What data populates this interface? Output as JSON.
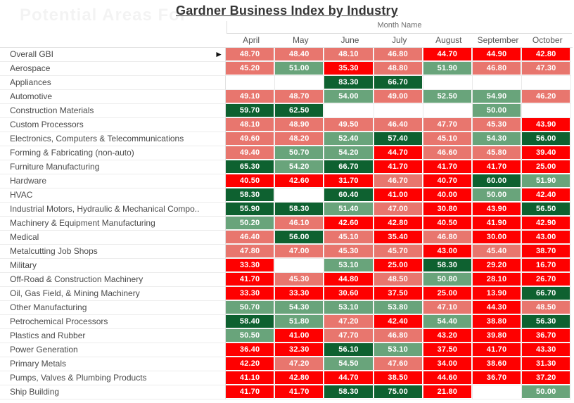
{
  "title": "Gardner Business Index by Industry",
  "watermark": {
    "text": "Potential Areas For"
  },
  "row_indicator": {
    "row_index": 0,
    "symbol": "►"
  },
  "chart_data": {
    "type": "heatmap",
    "title": "Gardner Business Index by Industry",
    "x_band_label": "Month Name",
    "columns": [
      "April",
      "May",
      "June",
      "July",
      "August",
      "September",
      "October"
    ],
    "rows": [
      {
        "label": "Overall GBI",
        "values": [
          48.7,
          48.4,
          48.1,
          46.8,
          44.7,
          44.9,
          42.8
        ]
      },
      {
        "label": "Aerospace",
        "values": [
          45.2,
          51.0,
          35.3,
          48.8,
          51.9,
          46.8,
          47.3
        ]
      },
      {
        "label": "Appliances",
        "values": [
          null,
          null,
          83.3,
          66.7,
          null,
          null,
          null
        ]
      },
      {
        "label": "Automotive",
        "values": [
          49.1,
          48.7,
          54.0,
          49.0,
          52.5,
          54.9,
          46.2
        ]
      },
      {
        "label": "Construction Materials",
        "values": [
          59.7,
          62.5,
          null,
          null,
          null,
          50.0,
          null
        ]
      },
      {
        "label": "Custom Processors",
        "values": [
          48.1,
          48.9,
          49.5,
          46.4,
          47.7,
          45.3,
          43.9
        ]
      },
      {
        "label": "Electronics, Computers & Telecommunications",
        "values": [
          49.6,
          48.2,
          52.4,
          57.4,
          45.1,
          54.3,
          56.0
        ]
      },
      {
        "label": "Forming & Fabricating (non-auto)",
        "values": [
          49.4,
          50.7,
          54.2,
          44.7,
          46.6,
          45.8,
          39.4
        ]
      },
      {
        "label": "Furniture Manufacturing",
        "values": [
          65.3,
          54.2,
          66.7,
          41.7,
          41.7,
          41.7,
          25.0
        ]
      },
      {
        "label": "Hardware",
        "values": [
          40.5,
          42.6,
          31.7,
          46.7,
          40.7,
          60.0,
          51.9
        ]
      },
      {
        "label": "HVAC",
        "values": [
          58.3,
          null,
          60.4,
          41.0,
          40.0,
          50.0,
          42.4
        ]
      },
      {
        "label": "Industrial Motors, Hydraulic & Mechanical Compo..",
        "values": [
          55.9,
          58.3,
          51.4,
          47.0,
          30.8,
          43.9,
          56.5
        ]
      },
      {
        "label": "Machinery & Equipment Manufacturing",
        "values": [
          50.2,
          46.1,
          42.6,
          42.8,
          40.5,
          41.9,
          42.9
        ]
      },
      {
        "label": "Medical",
        "values": [
          46.4,
          56.0,
          45.1,
          35.4,
          46.8,
          30.0,
          43.0
        ]
      },
      {
        "label": "Metalcutting Job Shops",
        "values": [
          47.8,
          47.0,
          45.3,
          45.7,
          43.0,
          45.4,
          38.7
        ]
      },
      {
        "label": "Military",
        "values": [
          33.3,
          null,
          53.1,
          25.0,
          58.3,
          29.2,
          16.7
        ]
      },
      {
        "label": "Off-Road & Construction Machinery",
        "values": [
          41.7,
          45.3,
          44.8,
          48.5,
          50.8,
          28.1,
          26.7
        ]
      },
      {
        "label": "Oil, Gas Field, & Mining Machinery",
        "values": [
          33.3,
          33.3,
          30.6,
          37.5,
          25.0,
          13.9,
          66.7
        ]
      },
      {
        "label": "Other Manufacturing",
        "values": [
          50.7,
          54.3,
          53.1,
          53.8,
          47.1,
          44.3,
          48.5
        ]
      },
      {
        "label": "Petrochemical Processors",
        "values": [
          58.4,
          51.8,
          47.2,
          42.4,
          54.4,
          38.8,
          56.3
        ]
      },
      {
        "label": "Plastics and Rubber",
        "values": [
          50.5,
          41.0,
          47.7,
          46.8,
          43.2,
          39.8,
          36.7
        ]
      },
      {
        "label": "Power Generation",
        "values": [
          36.4,
          32.3,
          56.1,
          53.1,
          37.5,
          41.7,
          43.3
        ]
      },
      {
        "label": "Primary Metals",
        "values": [
          42.2,
          47.2,
          54.5,
          47.6,
          34.0,
          38.6,
          31.3
        ]
      },
      {
        "label": "Pumps, Valves & Plumbing Products",
        "values": [
          41.1,
          42.8,
          44.7,
          38.5,
          44.6,
          36.7,
          37.2
        ]
      },
      {
        "label": "Ship Building",
        "values": [
          41.7,
          41.7,
          58.3,
          75.0,
          21.8,
          null,
          50.0
        ]
      }
    ],
    "value_format": "0.00",
    "color_scale": {
      "type": "stepped",
      "steps": [
        {
          "max": 45,
          "color": "#fe0000",
          "meaning": "contracting fast"
        },
        {
          "max": 50,
          "color": "#e8766e",
          "meaning": "contracting"
        },
        {
          "max": 55,
          "color": "#69a47b",
          "meaning": "expanding"
        },
        {
          "max": null,
          "color": "#0e6130",
          "meaning": "expanding fast"
        }
      ],
      "text_color": "#ffffff",
      "null_color": "#ffffff"
    },
    "legend_position": "none",
    "grid": true
  }
}
